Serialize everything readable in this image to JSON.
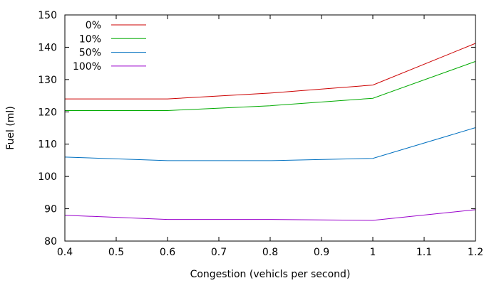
{
  "chart_data": {
    "type": "line",
    "title": "",
    "xlabel": "Congestion (vehicls per second)",
    "ylabel": "Fuel (ml)",
    "xlim": [
      0.4,
      1.2
    ],
    "ylim": [
      80,
      150
    ],
    "xticks": [
      0.4,
      0.5,
      0.6,
      0.7,
      0.8,
      0.9,
      1.0,
      1.1,
      1.2
    ],
    "xtick_labels": [
      "0.4",
      "0.5",
      "0.6",
      "0.7",
      "0.8",
      "0.9",
      "1",
      "1.1",
      "1.2"
    ],
    "yticks": [
      80,
      90,
      100,
      110,
      120,
      130,
      140,
      150
    ],
    "ytick_labels": [
      "80",
      "90",
      "100",
      "110",
      "120",
      "130",
      "140",
      "150"
    ],
    "grid": false,
    "legend_position": "top-left",
    "x": [
      0.4,
      0.6,
      0.8,
      1.0,
      1.2
    ],
    "series": [
      {
        "name": "0%",
        "color": "#cc0000",
        "values": [
          124.0,
          124.0,
          125.8,
          128.3,
          141.2
        ]
      },
      {
        "name": "10%",
        "color": "#00aa00",
        "values": [
          120.4,
          120.4,
          121.9,
          124.2,
          135.6
        ]
      },
      {
        "name": "50%",
        "color": "#0070c0",
        "values": [
          106.0,
          104.9,
          104.9,
          105.6,
          115.1
        ]
      },
      {
        "name": "100%",
        "color": "#9900cc",
        "values": [
          88.0,
          86.7,
          86.7,
          86.4,
          89.7
        ]
      }
    ]
  }
}
